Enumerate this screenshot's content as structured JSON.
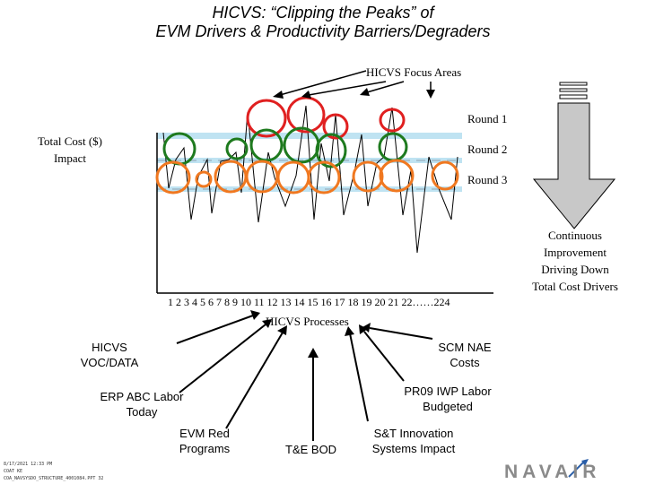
{
  "title_line1": "HICVS: “Clipping the Peaks” of",
  "title_line2": "EVM Drivers & Productivity Barriers/Degraders",
  "focus_areas_label": "HICVS Focus Areas",
  "y_label": "Total Cost ($) Impact",
  "rounds": [
    "Round 1",
    "Round 2",
    "Round 3"
  ],
  "x_axis_ticks": "1 2 3 4 5 6 7 8 9 10 11 12 13 14 15 16 17 18 19 20 21 22……224",
  "x_axis_title": "HICVS Processes",
  "right_arrow_text": "Continuous Improvement Driving Down Total Cost Drivers",
  "bottom_labels": {
    "voc": "HICVS VOC/DATA",
    "scm": "SCM NAE Costs",
    "erp": "ERP ABC Labor Today",
    "pr09": "PR09 IWP Labor Budgeted",
    "evm": "EVM Red Programs",
    "te": "T&E BOD",
    "st": "S&T Innovation Systems Impact"
  },
  "footer_lines": [
    "8/17/2021 12:33 PM",
    "COAT KE",
    "COA_NAVSYSDO_STRUCTURE_4001084.PPT 32"
  ],
  "logo_text": "NAVAIR",
  "colors": {
    "round1": "#e02020",
    "round2": "#1e7a1e",
    "round3": "#f07820",
    "band": "#bfe3f2",
    "arrow_fill": "#c8c8c8"
  }
}
